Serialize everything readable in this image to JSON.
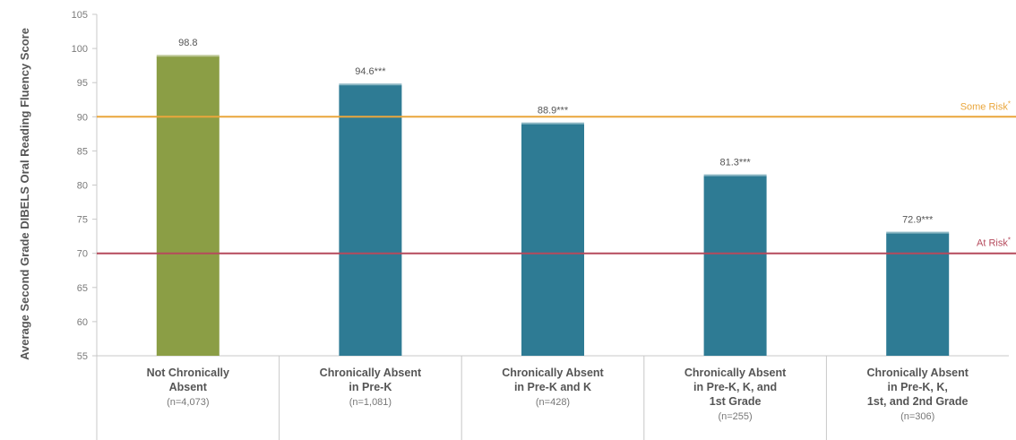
{
  "colors": {
    "not_absent_bar": "#8b9e45",
    "absent_bar": "#2e7b94",
    "some_risk_line": "#eaa63c",
    "at_risk_line": "#b54a5c",
    "axis": "#c8c8c8"
  },
  "chart_data": {
    "type": "bar",
    "ylabel": "Average Second Grade DIBELS Oral Reading Fluency Score",
    "ylim": [
      55,
      105
    ],
    "yticks": [
      55,
      60,
      65,
      70,
      75,
      80,
      85,
      90,
      95,
      100,
      105
    ],
    "grid": false,
    "categories": [
      {
        "lines": [
          "Not Chronically",
          "Absent"
        ],
        "n": "(n=4,073)"
      },
      {
        "lines": [
          "Chronically Absent",
          "in Pre-K"
        ],
        "n": "(n=1,081)"
      },
      {
        "lines": [
          "Chronically Absent",
          "in Pre-K and K"
        ],
        "n": "(n=428)"
      },
      {
        "lines": [
          "Chronically Absent",
          "in Pre-K, K, and",
          "1st Grade"
        ],
        "n": "(n=255)"
      },
      {
        "lines": [
          "Chronically Absent",
          "in Pre-K, K,",
          "1st, and 2nd Grade"
        ],
        "n": "(n=306)"
      }
    ],
    "values": [
      98.8,
      94.6,
      88.9,
      81.3,
      72.9
    ],
    "value_labels": [
      "98.8",
      "94.6***",
      "88.9***",
      "81.3***",
      "72.9***"
    ],
    "reference_lines": [
      {
        "label": "Some Risk",
        "value": 90,
        "color": "#eaa63c"
      },
      {
        "label": "At Risk",
        "value": 70,
        "color": "#b54a5c"
      }
    ]
  }
}
